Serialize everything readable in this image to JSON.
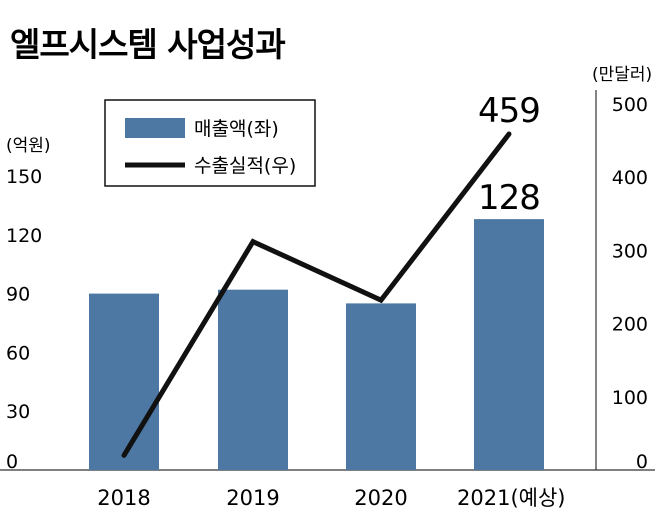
{
  "chart_data": {
    "type": "bar+line",
    "title": "엘프시스템 사업성과",
    "categories": [
      "2018",
      "2019",
      "2020",
      "2021(예상)"
    ],
    "series": [
      {
        "name": "매출액(좌)",
        "type": "bar",
        "axis": "left",
        "values": [
          90,
          92,
          85,
          128
        ]
      },
      {
        "name": "수출실적(우)",
        "type": "line",
        "axis": "right",
        "values": [
          20,
          312,
          232,
          459
        ]
      }
    ],
    "left_axis": {
      "unit": "(억원)",
      "ticks": [
        "0",
        "30",
        "60",
        "90",
        "120",
        "150"
      ],
      "ylim": [
        0,
        160
      ]
    },
    "right_axis": {
      "unit": "(만달러)",
      "ticks": [
        "0",
        "100",
        "200",
        "300",
        "400",
        "500"
      ],
      "ylim": [
        0,
        530
      ]
    },
    "data_labels": [
      {
        "series": 0,
        "index": 3,
        "text": "128"
      },
      {
        "series": 1,
        "index": 3,
        "text": "459"
      }
    ],
    "legend_position": "top-left",
    "bar_color": "#4d78a4",
    "line_color": "#111111",
    "grid": false
  }
}
